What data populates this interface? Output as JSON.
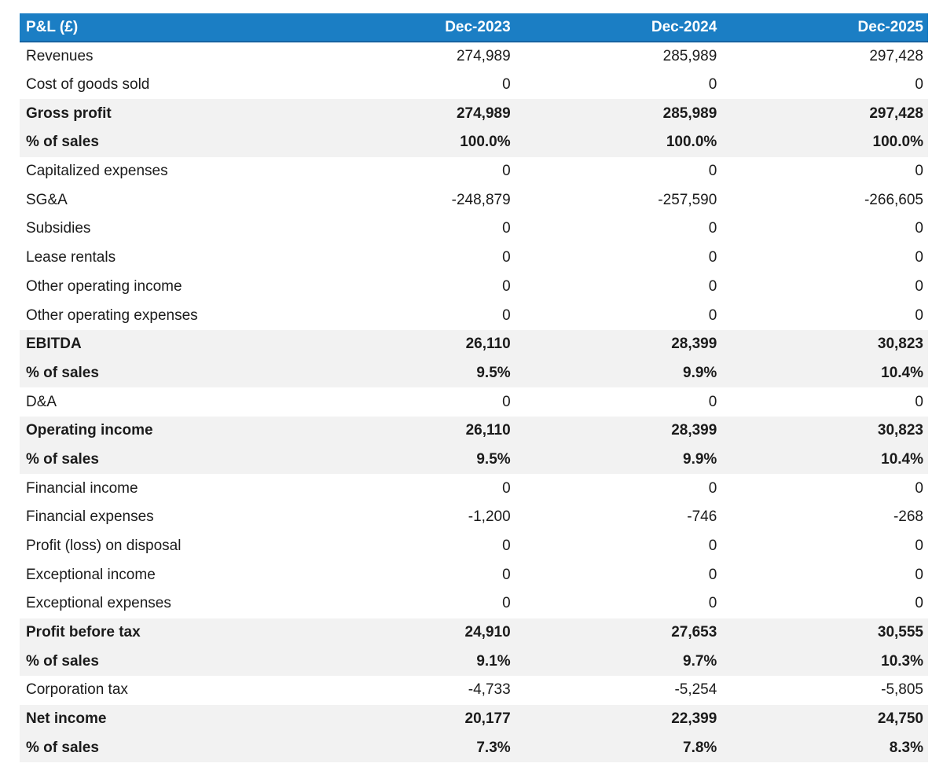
{
  "colors": {
    "header_bg": "#1b7ec4",
    "header_border": "#1563a2",
    "band_bg": "#f2f2f2",
    "header_text": "#ffffff",
    "body_text": "#1b1b1b"
  },
  "chart_data": {
    "type": "table",
    "title": "P&L (£)",
    "currency": "£",
    "columns": [
      "Dec-2023",
      "Dec-2024",
      "Dec-2025"
    ],
    "rows": [
      {
        "label": "Revenues",
        "values": [
          "274,989",
          "285,989",
          "297,428"
        ],
        "emphasis": false
      },
      {
        "label": "Cost of goods sold",
        "values": [
          "0",
          "0",
          "0"
        ],
        "emphasis": false
      },
      {
        "label": "Gross profit",
        "values": [
          "274,989",
          "285,989",
          "297,428"
        ],
        "emphasis": true
      },
      {
        "label": "% of sales",
        "values": [
          "100.0%",
          "100.0%",
          "100.0%"
        ],
        "emphasis": true
      },
      {
        "label": "Capitalized expenses",
        "values": [
          "0",
          "0",
          "0"
        ],
        "emphasis": false
      },
      {
        "label": "SG&A",
        "values": [
          "-248,879",
          "-257,590",
          "-266,605"
        ],
        "emphasis": false
      },
      {
        "label": "Subsidies",
        "values": [
          "0",
          "0",
          "0"
        ],
        "emphasis": false
      },
      {
        "label": "Lease rentals",
        "values": [
          "0",
          "0",
          "0"
        ],
        "emphasis": false
      },
      {
        "label": "Other operating income",
        "values": [
          "0",
          "0",
          "0"
        ],
        "emphasis": false
      },
      {
        "label": "Other operating expenses",
        "values": [
          "0",
          "0",
          "0"
        ],
        "emphasis": false
      },
      {
        "label": "EBITDA",
        "values": [
          "26,110",
          "28,399",
          "30,823"
        ],
        "emphasis": true
      },
      {
        "label": "% of sales",
        "values": [
          "9.5%",
          "9.9%",
          "10.4%"
        ],
        "emphasis": true
      },
      {
        "label": "D&A",
        "values": [
          "0",
          "0",
          "0"
        ],
        "emphasis": false
      },
      {
        "label": "Operating income",
        "values": [
          "26,110",
          "28,399",
          "30,823"
        ],
        "emphasis": true
      },
      {
        "label": "% of sales",
        "values": [
          "9.5%",
          "9.9%",
          "10.4%"
        ],
        "emphasis": true
      },
      {
        "label": "Financial income",
        "values": [
          "0",
          "0",
          "0"
        ],
        "emphasis": false
      },
      {
        "label": "Financial expenses",
        "values": [
          "-1,200",
          "-746",
          "-268"
        ],
        "emphasis": false
      },
      {
        "label": "Profit (loss) on disposal",
        "values": [
          "0",
          "0",
          "0"
        ],
        "emphasis": false
      },
      {
        "label": "Exceptional income",
        "values": [
          "0",
          "0",
          "0"
        ],
        "emphasis": false
      },
      {
        "label": "Exceptional expenses",
        "values": [
          "0",
          "0",
          "0"
        ],
        "emphasis": false
      },
      {
        "label": "Profit before tax",
        "values": [
          "24,910",
          "27,653",
          "30,555"
        ],
        "emphasis": true
      },
      {
        "label": "% of sales",
        "values": [
          "9.1%",
          "9.7%",
          "10.3%"
        ],
        "emphasis": true
      },
      {
        "label": "Corporation tax",
        "values": [
          "-4,733",
          "-5,254",
          "-5,805"
        ],
        "emphasis": false
      },
      {
        "label": "Net income",
        "values": [
          "20,177",
          "22,399",
          "24,750"
        ],
        "emphasis": true
      },
      {
        "label": "% of sales",
        "values": [
          "7.3%",
          "7.8%",
          "8.3%"
        ],
        "emphasis": true
      }
    ]
  }
}
